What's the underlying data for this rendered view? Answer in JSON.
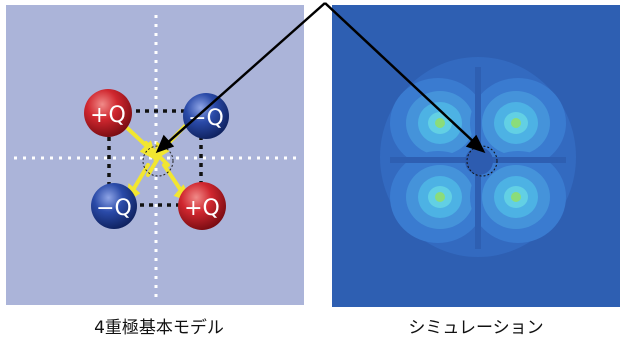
{
  "left_panel": {
    "caption": "4重極基本モデル",
    "charges": [
      {
        "label": "+Q",
        "sign": "positive"
      },
      {
        "label": "−Q",
        "sign": "negative"
      },
      {
        "label": "−Q",
        "sign": "negative"
      },
      {
        "label": "+Q",
        "sign": "positive"
      }
    ],
    "colors": {
      "background": "#abb4d9",
      "positive": "#c0222a",
      "negative": "#1f3f99",
      "field_arrow": "#f2e630",
      "guide": "#ffffff",
      "box": "#000000"
    }
  },
  "right_panel": {
    "caption": "シミュレーション",
    "colors": {
      "background": "#2e5fb2",
      "outer_lobe": "#3a7bd0",
      "mid_lobe": "#4aa0e0",
      "inner_lobe": "#50c3e8",
      "core": "#8bdc7a"
    }
  },
  "pointer_color": "#000000"
}
